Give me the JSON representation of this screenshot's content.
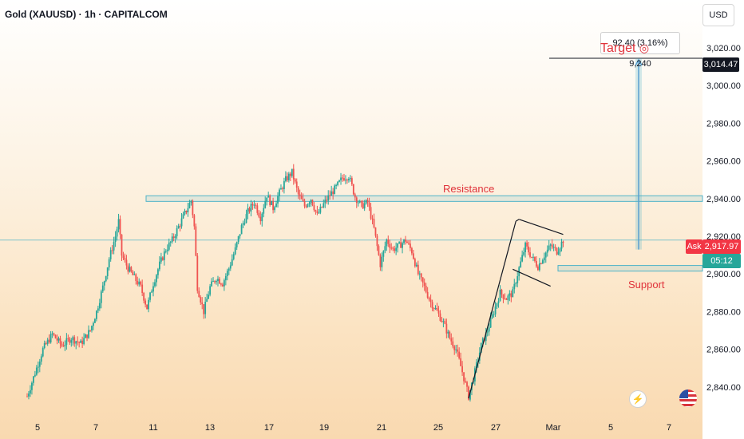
{
  "header": {
    "title": "Gold (XAUUSD) · 1h · CAPITALCOM"
  },
  "axis": {
    "currency": "USD"
  },
  "badges": {
    "target_price": "3,014.47",
    "ask_label": "Ask",
    "ask_price": "2,917.97",
    "countdown": "05:12"
  },
  "annotations": {
    "target_label": "Target",
    "target_stats": "92.40 (3.16%) 9,240",
    "resistance": "Resistance",
    "support": "Support"
  },
  "colors": {
    "up": "#26a69a",
    "down": "#ef5350",
    "zone": "#4fb3c8",
    "annotation": "#e0323a",
    "ask_badge": "#f23645",
    "countdown_badge": "#26a69a"
  },
  "chart_data": {
    "type": "candlestick",
    "title": "Gold (XAUUSD) · 1h · CAPITALCOM",
    "ylim": [
      2830,
      3030
    ],
    "y_ticks": [
      2840,
      2860,
      2880,
      2900,
      2920,
      2940,
      2960,
      2980,
      3000,
      3020
    ],
    "y_tick_labels": [
      "2,840.00",
      "2,860.00",
      "2,880.00",
      "2,900.00",
      "2,920.00",
      "2,940.00",
      "2,960.00",
      "2,980.00",
      "3,000.00",
      "3,020.00"
    ],
    "x_tick_labels": [
      "5",
      "7",
      "11",
      "13",
      "17",
      "19",
      "21",
      "25",
      "27",
      "Mar",
      "5",
      "7"
    ],
    "path": [
      [
        0,
        2835
      ],
      [
        1.5,
        2850
      ],
      [
        2.5,
        2860
      ],
      [
        4,
        2868
      ],
      [
        5.5,
        2862
      ],
      [
        7,
        2866
      ],
      [
        8.5,
        2863
      ],
      [
        10,
        2870
      ],
      [
        11,
        2880
      ],
      [
        12,
        2893
      ],
      [
        13,
        2908
      ],
      [
        14,
        2920
      ],
      [
        14.5,
        2928
      ],
      [
        15,
        2910
      ],
      [
        16,
        2903
      ],
      [
        17,
        2898
      ],
      [
        18,
        2893
      ],
      [
        19,
        2882
      ],
      [
        20,
        2895
      ],
      [
        21,
        2905
      ],
      [
        22,
        2913
      ],
      [
        23,
        2918
      ],
      [
        24,
        2925
      ],
      [
        25,
        2932
      ],
      [
        26,
        2939
      ],
      [
        26.5,
        2925
      ],
      [
        27,
        2893
      ],
      [
        28,
        2880
      ],
      [
        29,
        2893
      ],
      [
        30,
        2898
      ],
      [
        31,
        2895
      ],
      [
        32,
        2903
      ],
      [
        33,
        2913
      ],
      [
        34,
        2925
      ],
      [
        35,
        2933
      ],
      [
        36,
        2938
      ],
      [
        37,
        2930
      ],
      [
        38,
        2942
      ],
      [
        39,
        2935
      ],
      [
        40,
        2943
      ],
      [
        41,
        2950
      ],
      [
        42,
        2954
      ],
      [
        43,
        2942
      ],
      [
        44,
        2936
      ],
      [
        45,
        2940
      ],
      [
        46,
        2931
      ],
      [
        47,
        2937
      ],
      [
        48,
        2942
      ],
      [
        49,
        2946
      ],
      [
        50,
        2951
      ],
      [
        51,
        2952
      ],
      [
        52,
        2941
      ],
      [
        53,
        2936
      ],
      [
        54,
        2938
      ],
      [
        55,
        2924
      ],
      [
        56,
        2905
      ],
      [
        57,
        2918
      ],
      [
        58,
        2913
      ],
      [
        59,
        2915
      ],
      [
        60,
        2918
      ],
      [
        61,
        2912
      ],
      [
        62,
        2900
      ],
      [
        63,
        2893
      ],
      [
        64,
        2885
      ],
      [
        65,
        2880
      ],
      [
        66,
        2874
      ],
      [
        67,
        2866
      ],
      [
        68,
        2860
      ],
      [
        69,
        2848
      ],
      [
        70,
        2835
      ],
      [
        71,
        2848
      ],
      [
        72,
        2862
      ],
      [
        73,
        2870
      ],
      [
        74,
        2880
      ],
      [
        75,
        2890
      ],
      [
        76,
        2887
      ],
      [
        77,
        2890
      ],
      [
        78,
        2903
      ],
      [
        79,
        2915
      ],
      [
        80,
        2909
      ],
      [
        81,
        2904
      ],
      [
        82,
        2910
      ],
      [
        83,
        2915
      ],
      [
        84,
        2912
      ],
      [
        85,
        2918
      ]
    ],
    "resistance_zone": [
      2938.5,
      2941.5
    ],
    "support_zone": [
      2901.5,
      2904.5
    ],
    "current_price": 2917.97,
    "target_price": 3014.47,
    "target_move": "92.40 (3.16%) 9,240",
    "channel_upper": [
      [
        78,
        2929
      ],
      [
        85,
        2921
      ]
    ],
    "channel_lower": [
      [
        77,
        2902.5
      ],
      [
        83,
        2893.5
      ]
    ],
    "impulse_line": [
      [
        70,
        2834
      ],
      [
        77.5,
        2928
      ]
    ],
    "annotations": [
      "Resistance",
      "Support",
      "Target"
    ]
  }
}
